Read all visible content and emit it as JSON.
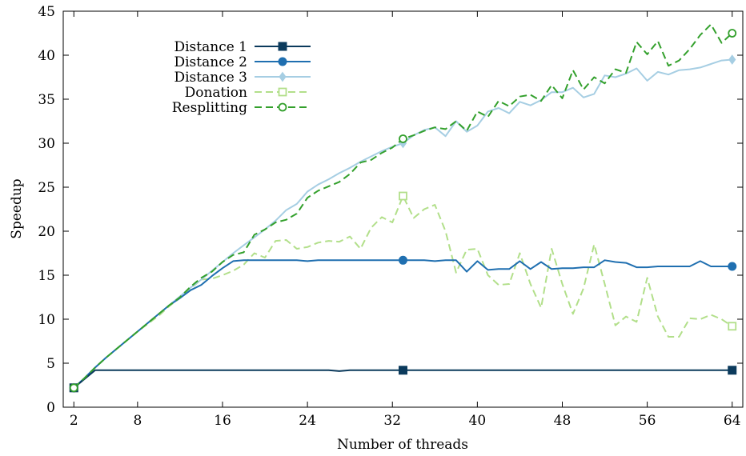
{
  "chart_data": {
    "type": "line",
    "xlabel": "Number of threads",
    "ylabel": "Speedup",
    "xlim": [
      1,
      65
    ],
    "ylim": [
      0,
      45
    ],
    "x_ticks": [
      2,
      8,
      16,
      24,
      32,
      40,
      48,
      56,
      64
    ],
    "y_ticks": [
      0,
      5,
      10,
      15,
      20,
      25,
      30,
      35,
      40,
      45
    ],
    "grid": false,
    "legend_position": "top-left",
    "series": [
      {
        "name": "Distance 1",
        "color": "#0b3a5c",
        "dash": "solid",
        "marker": "square-filled",
        "marker_x": [
          2,
          33,
          64
        ],
        "x": [
          2,
          3,
          4,
          8,
          16,
          24,
          26,
          27,
          28,
          29,
          32,
          33,
          40,
          48,
          56,
          64
        ],
        "y": [
          2.2,
          3.2,
          4.2,
          4.2,
          4.2,
          4.2,
          4.2,
          4.1,
          4.2,
          4.2,
          4.2,
          4.2,
          4.2,
          4.2,
          4.2,
          4.2
        ]
      },
      {
        "name": "Distance 2",
        "color": "#1f6fb0",
        "dash": "solid",
        "marker": "circle-filled",
        "marker_x": [
          2,
          33,
          64
        ],
        "x": [
          2,
          3,
          4,
          5,
          6,
          7,
          8,
          9,
          10,
          11,
          12,
          13,
          14,
          15,
          16,
          17,
          18,
          19,
          20,
          21,
          22,
          23,
          24,
          25,
          26,
          27,
          28,
          29,
          30,
          31,
          32,
          33,
          34,
          35,
          36,
          37,
          38,
          39,
          40,
          41,
          42,
          43,
          44,
          45,
          46,
          47,
          48,
          49,
          50,
          51,
          52,
          53,
          54,
          55,
          56,
          57,
          58,
          59,
          60,
          61,
          62,
          63,
          64
        ],
        "y": [
          2.2,
          3.3,
          4.5,
          5.6,
          6.6,
          7.6,
          8.6,
          9.6,
          10.6,
          11.6,
          12.4,
          13.3,
          13.9,
          14.9,
          15.8,
          16.6,
          16.7,
          16.7,
          16.7,
          16.7,
          16.7,
          16.7,
          16.6,
          16.7,
          16.7,
          16.7,
          16.7,
          16.7,
          16.7,
          16.7,
          16.7,
          16.7,
          16.7,
          16.7,
          16.6,
          16.7,
          16.7,
          15.4,
          16.6,
          15.6,
          15.7,
          15.7,
          16.6,
          15.7,
          16.5,
          15.7,
          15.8,
          15.8,
          15.9,
          15.9,
          16.7,
          16.5,
          16.4,
          15.9,
          15.9,
          16.0,
          16.0,
          16.0,
          16.0,
          16.6,
          16.0,
          16.0,
          16.0
        ]
      },
      {
        "name": "Distance 3",
        "color": "#a6cee3",
        "dash": "solid",
        "marker": "diamond-filled",
        "marker_x": [
          2,
          33,
          64
        ],
        "x": [
          2,
          3,
          4,
          5,
          6,
          7,
          8,
          9,
          10,
          11,
          12,
          13,
          14,
          15,
          16,
          17,
          18,
          19,
          20,
          21,
          22,
          23,
          24,
          25,
          26,
          27,
          28,
          29,
          30,
          31,
          32,
          33,
          34,
          35,
          36,
          37,
          38,
          39,
          40,
          41,
          42,
          43,
          44,
          45,
          46,
          47,
          48,
          49,
          50,
          51,
          52,
          53,
          54,
          55,
          56,
          57,
          58,
          59,
          60,
          61,
          62,
          63,
          64
        ],
        "y": [
          2.2,
          3.3,
          4.5,
          5.6,
          6.6,
          7.6,
          8.6,
          9.6,
          10.6,
          11.6,
          12.6,
          13.6,
          14.5,
          15.5,
          16.5,
          17.5,
          18.4,
          19.3,
          20.2,
          21.2,
          22.4,
          23.1,
          24.5,
          25.3,
          25.9,
          26.6,
          27.2,
          27.9,
          28.5,
          29.1,
          29.6,
          30.0,
          30.9,
          31.5,
          31.8,
          30.8,
          32.5,
          31.3,
          32.0,
          33.6,
          34.0,
          33.4,
          34.7,
          34.3,
          34.9,
          35.8,
          35.8,
          36.3,
          35.2,
          35.6,
          37.7,
          37.5,
          37.9,
          38.5,
          37.1,
          38.1,
          37.8,
          38.3,
          38.4,
          38.6,
          39.0,
          39.4,
          39.5
        ]
      },
      {
        "name": "Donation",
        "color": "#b2df8a",
        "dash": "dashed",
        "marker": "square-open",
        "marker_x": [
          2,
          33,
          64
        ],
        "x": [
          2,
          3,
          4,
          5,
          6,
          7,
          8,
          9,
          10,
          11,
          12,
          13,
          14,
          15,
          16,
          17,
          18,
          19,
          20,
          21,
          22,
          23,
          24,
          25,
          26,
          27,
          28,
          29,
          30,
          31,
          32,
          33,
          34,
          35,
          36,
          37,
          38,
          39,
          40,
          41,
          42,
          43,
          44,
          45,
          46,
          47,
          48,
          49,
          50,
          51,
          52,
          53,
          54,
          55,
          56,
          57,
          58,
          59,
          60,
          61,
          62,
          63,
          64
        ],
        "y": [
          2.2,
          3.3,
          4.5,
          5.6,
          6.6,
          7.6,
          8.6,
          9.5,
          10.4,
          11.5,
          12.4,
          13.5,
          14.5,
          14.6,
          15.0,
          15.5,
          16.2,
          17.5,
          17.0,
          18.9,
          19.0,
          18.0,
          18.2,
          18.7,
          18.9,
          18.8,
          19.4,
          18.0,
          20.4,
          21.6,
          21.0,
          24.0,
          21.5,
          22.5,
          23.0,
          20.0,
          15.3,
          17.9,
          18.0,
          15.0,
          13.9,
          14.0,
          17.5,
          14.0,
          11.3,
          18.0,
          14.0,
          10.6,
          13.5,
          18.5,
          14.0,
          9.3,
          10.3,
          9.7,
          14.7,
          10.3,
          8.0,
          8.0,
          10.1,
          10.0,
          10.5,
          10.0,
          9.2
        ]
      },
      {
        "name": "Resplitting",
        "color": "#33a02c",
        "dash": "dashed",
        "marker": "circle-open",
        "marker_x": [
          2,
          33,
          64
        ],
        "x": [
          2,
          3,
          4,
          5,
          6,
          7,
          8,
          9,
          10,
          11,
          12,
          13,
          14,
          15,
          16,
          17,
          18,
          19,
          20,
          21,
          22,
          23,
          24,
          25,
          26,
          27,
          28,
          29,
          30,
          31,
          32,
          33,
          34,
          35,
          36,
          37,
          38,
          39,
          40,
          41,
          42,
          43,
          44,
          45,
          46,
          47,
          48,
          49,
          50,
          51,
          52,
          53,
          54,
          55,
          56,
          57,
          58,
          59,
          60,
          61,
          62,
          63,
          64
        ],
        "y": [
          2.2,
          3.3,
          4.5,
          5.6,
          6.6,
          7.6,
          8.6,
          9.6,
          10.6,
          11.6,
          12.5,
          13.7,
          14.7,
          15.4,
          16.5,
          17.3,
          17.6,
          19.6,
          20.2,
          21.0,
          21.3,
          22.0,
          23.8,
          24.6,
          25.1,
          25.6,
          26.5,
          27.8,
          28.1,
          28.9,
          29.5,
          30.5,
          30.9,
          31.4,
          31.8,
          31.6,
          32.5,
          31.4,
          33.6,
          33.0,
          34.8,
          34.2,
          35.3,
          35.5,
          34.8,
          36.6,
          35.1,
          38.3,
          36.1,
          37.5,
          36.8,
          38.4,
          38.0,
          41.5,
          40.1,
          41.6,
          38.8,
          39.4,
          40.7,
          42.3,
          43.5,
          41.4,
          42.5
        ]
      }
    ]
  }
}
